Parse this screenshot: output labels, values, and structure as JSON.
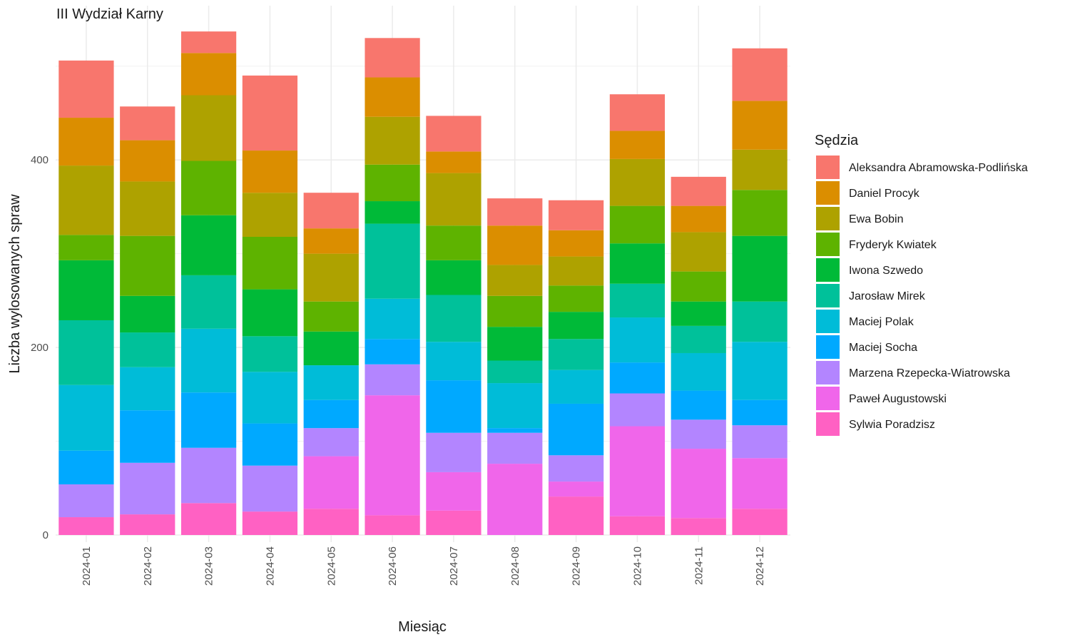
{
  "chart_data": {
    "type": "bar",
    "stacked": true,
    "title": "III Wydział Karny",
    "xlabel": "Miesiąc",
    "ylabel": "Liczba wylosowanych spraw",
    "ylim": [
      0,
      540
    ],
    "y_ticks": [
      0,
      200,
      400
    ],
    "grid": true,
    "legend_title": "Sędzia",
    "legend_position": "right",
    "categories": [
      "2024-01",
      "2024-02",
      "2024-03",
      "2024-04",
      "2024-05",
      "2024-06",
      "2024-07",
      "2024-08",
      "2024-09",
      "2024-10",
      "2024-11",
      "2024-12"
    ],
    "series": [
      {
        "name": "Sylwia Poradzisz",
        "color": "#FF61C3",
        "values": [
          19,
          22,
          34,
          25,
          28,
          21,
          26,
          0,
          41,
          20,
          18,
          28
        ]
      },
      {
        "name": "Paweł Augustowski",
        "color": "#F066EA",
        "values": [
          0,
          0,
          0,
          0,
          56,
          128,
          41,
          76,
          16,
          96,
          74,
          54
        ]
      },
      {
        "name": "Marzena Rzepecka-Wiatrowska",
        "color": "#B385FF",
        "values": [
          35,
          55,
          59,
          49,
          30,
          33,
          42,
          33,
          28,
          35,
          31,
          35
        ]
      },
      {
        "name": "Maciej Socha",
        "color": "#00A9FF",
        "values": [
          36,
          56,
          59,
          45,
          30,
          27,
          56,
          5,
          55,
          33,
          31,
          27
        ]
      },
      {
        "name": "Maciej Polak",
        "color": "#00BCD8",
        "values": [
          70,
          46,
          68,
          55,
          37,
          43,
          41,
          48,
          36,
          48,
          40,
          62
        ]
      },
      {
        "name": "Jarosław Mirek",
        "color": "#00C19A",
        "values": [
          69,
          37,
          57,
          38,
          0,
          80,
          50,
          24,
          33,
          36,
          29,
          43
        ]
      },
      {
        "name": "Iwona Szwedo",
        "color": "#00BA38",
        "values": [
          64,
          39,
          64,
          50,
          36,
          24,
          37,
          36,
          29,
          43,
          26,
          70
        ]
      },
      {
        "name": "Fryderyk Kwiatek",
        "color": "#5EB300",
        "values": [
          27,
          64,
          58,
          56,
          32,
          39,
          37,
          33,
          28,
          40,
          32,
          49
        ]
      },
      {
        "name": "Ewa Bobin",
        "color": "#AEA200",
        "values": [
          74,
          58,
          70,
          47,
          51,
          51,
          56,
          33,
          31,
          50,
          42,
          43
        ]
      },
      {
        "name": "Daniel Procyk",
        "color": "#DB8E00",
        "values": [
          51,
          44,
          45,
          45,
          27,
          42,
          23,
          42,
          28,
          30,
          28,
          52
        ]
      },
      {
        "name": "Aleksandra Abramowska-Podlińska",
        "color": "#F8766D",
        "values": [
          61,
          36,
          23,
          80,
          38,
          42,
          38,
          29,
          32,
          39,
          31,
          56
        ]
      }
    ]
  }
}
